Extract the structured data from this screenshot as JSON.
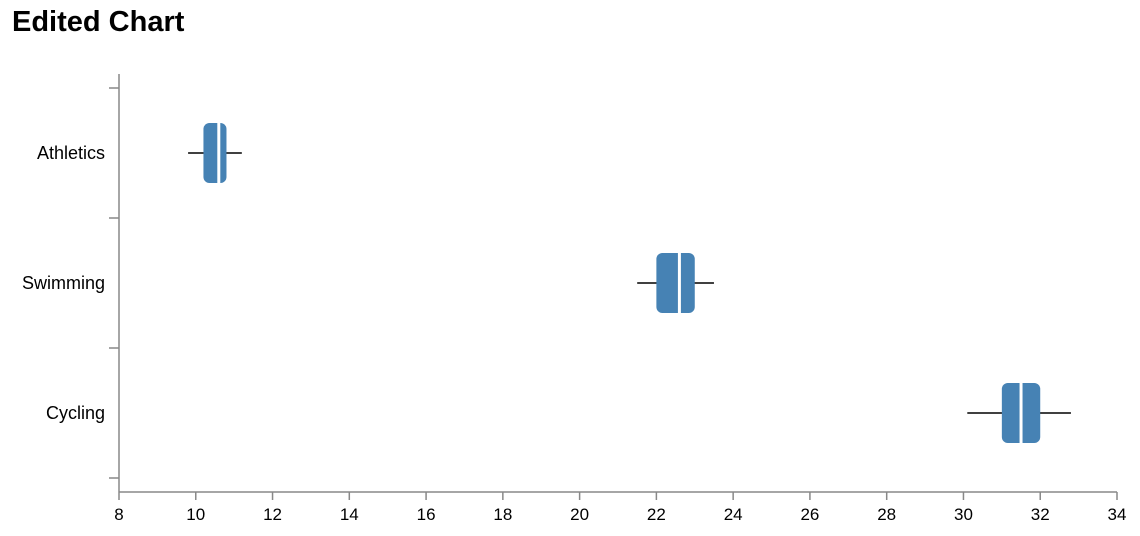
{
  "title": "Edited Chart",
  "colors": {
    "box": "#4682b4",
    "median": "#ffffff",
    "whisker": "#000000",
    "axis": "#888888"
  },
  "chart_data": {
    "type": "boxplot",
    "orientation": "horizontal",
    "title": "Edited Chart",
    "xlabel": "",
    "ylabel": "",
    "xlim": [
      8,
      34
    ],
    "xticks": [
      8,
      10,
      12,
      14,
      16,
      18,
      20,
      22,
      24,
      26,
      28,
      30,
      32,
      34
    ],
    "grid": false,
    "categories": [
      "Athletics",
      "Swimming",
      "Cycling"
    ],
    "boxes": [
      {
        "category": "Athletics",
        "min": 9.8,
        "q1": 10.2,
        "median": 10.6,
        "q3": 10.8,
        "max": 11.2
      },
      {
        "category": "Swimming",
        "min": 21.5,
        "q1": 22.0,
        "median": 22.6,
        "q3": 23.0,
        "max": 23.5
      },
      {
        "category": "Cycling",
        "min": 30.1,
        "q1": 31.0,
        "median": 31.5,
        "q3": 32.0,
        "max": 32.8
      }
    ]
  }
}
